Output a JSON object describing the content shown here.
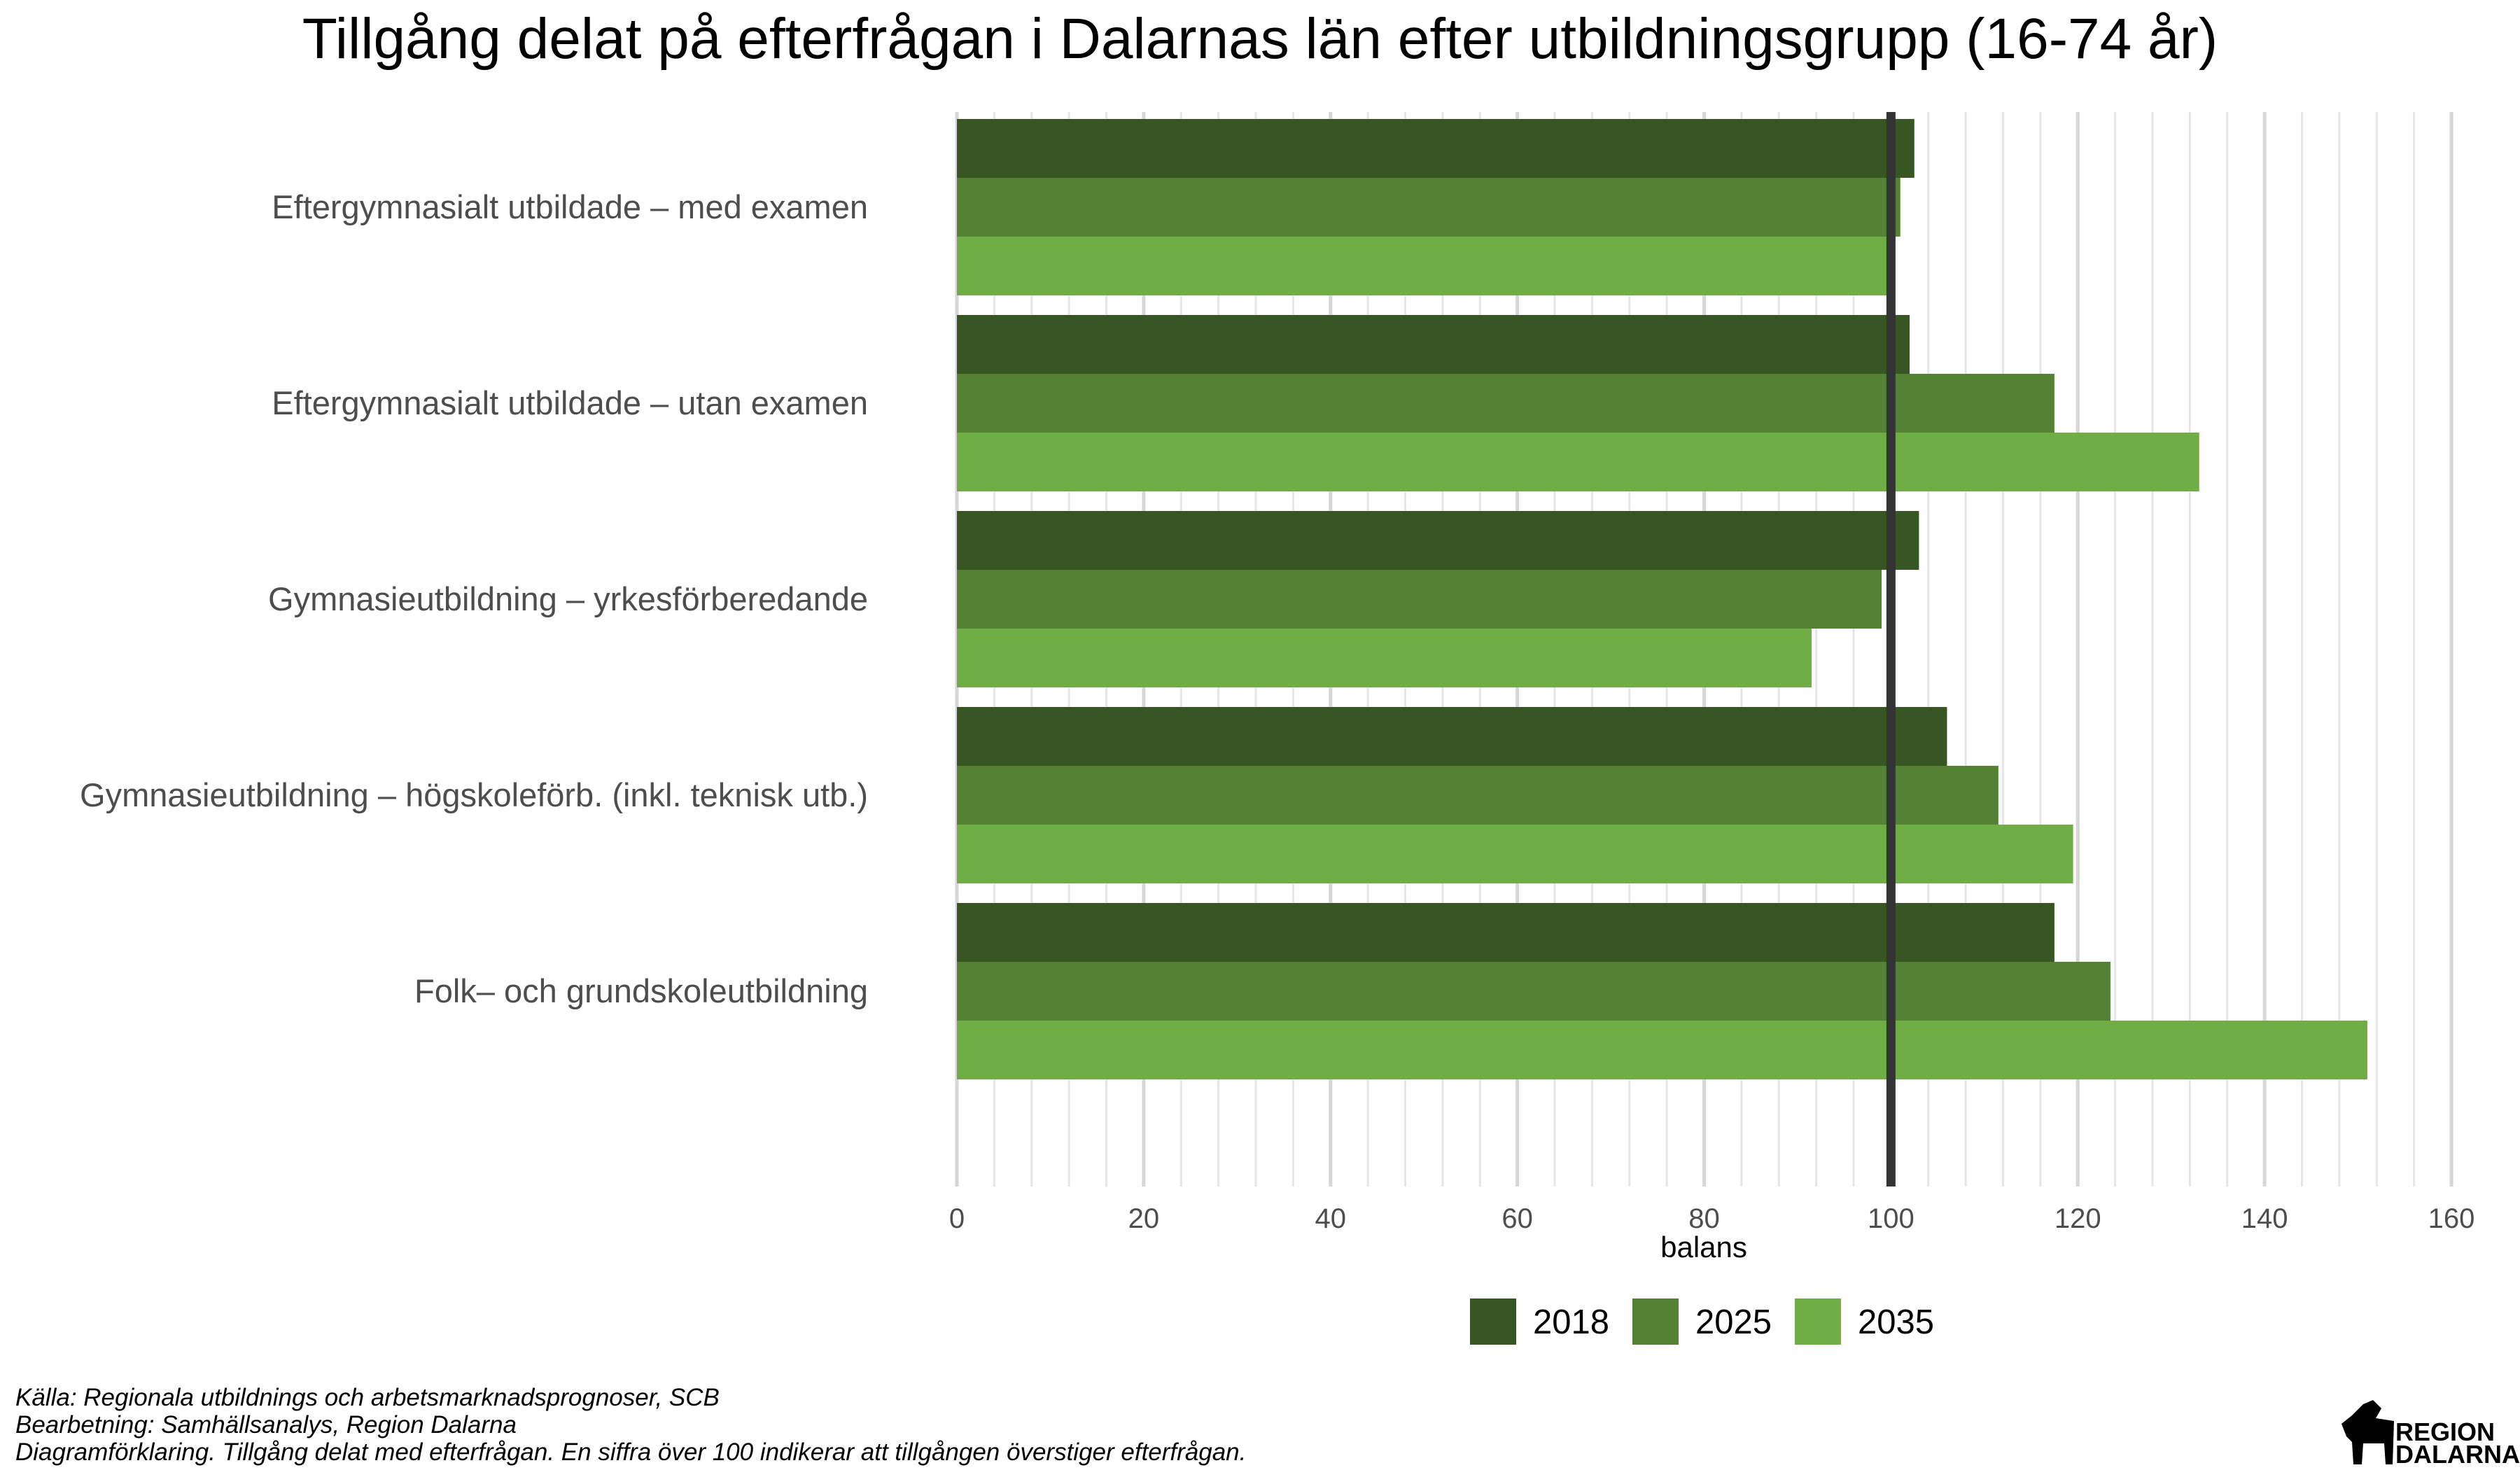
{
  "chart_data": {
    "type": "bar",
    "orientation": "horizontal",
    "title": "Tillgång delat på efterfrågan i Dalarnas län efter utbildningsgrupp (16-74 år)",
    "xlabel": "balans",
    "ylabel": "",
    "xlim": [
      0,
      160
    ],
    "xticks": [
      0,
      20,
      40,
      60,
      80,
      100,
      120,
      140,
      160
    ],
    "reference_line": 100,
    "grid": true,
    "legend_position": "bottom",
    "categories": [
      "Eftergymnasialt utbildade – med examen",
      "Eftergymnasialt utbildade – utan examen",
      "Gymnasieutbildning – yrkesförberedande",
      "Gymnasieutbildning – högskoleförb. (inkl. teknisk utb.)",
      "Folk– och grundskoleutbildning"
    ],
    "series": [
      {
        "name": "2018",
        "color": "#375623",
        "values": [
          102.5,
          102.0,
          103.0,
          106.0,
          117.5
        ]
      },
      {
        "name": "2025",
        "color": "#548235",
        "values": [
          101.0,
          117.5,
          99.0,
          111.5,
          123.5
        ]
      },
      {
        "name": "2035",
        "color": "#70AD47",
        "values": [
          100.0,
          133.0,
          91.5,
          119.5,
          151.0
        ]
      }
    ]
  },
  "caption": {
    "line1": "Källa: Regionala utbildnings och arbetsmarknadsprognoser, SCB",
    "line2": "Bearbetning: Samhällsanalys, Region Dalarna",
    "line3": "Diagramförklaring. Tillgång delat med efterfrågan. En siffra över 100 indikerar att tillgången överstiger efterfrågan."
  },
  "logo": {
    "line1": "REGION",
    "line2": "DALARNA"
  }
}
